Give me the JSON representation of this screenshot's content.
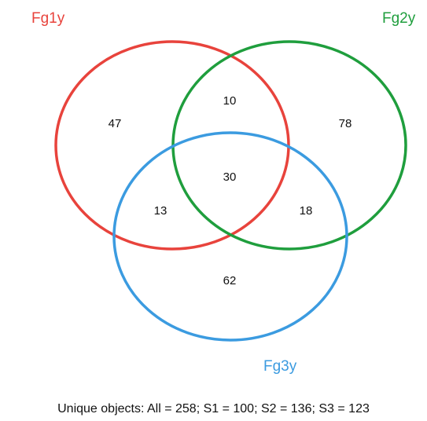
{
  "sets": [
    {
      "label": "Fg1y",
      "color": "#e8433c"
    },
    {
      "label": "Fg2y",
      "color": "#1f9e3d"
    },
    {
      "label": "Fg3y",
      "color": "#3b9be0"
    }
  ],
  "regions": {
    "only_fg1y": "47",
    "fg1y_fg2y": "10",
    "only_fg2y": "78",
    "all_three": "30",
    "fg1y_fg3y": "13",
    "fg2y_fg3y": "18",
    "only_fg3y": "62"
  },
  "footer": "Unique objects: All = 258; S1 = 100; S2 = 136; S3 = 123"
}
